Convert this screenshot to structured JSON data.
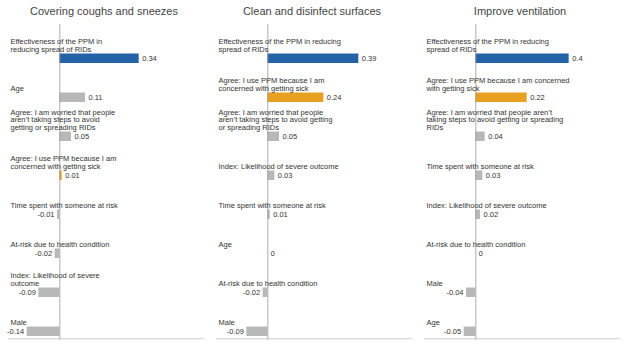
{
  "chart_data": [
    {
      "type": "bar",
      "orientation": "horizontal",
      "title": "Covering coughs and sneezes",
      "categories": [
        "Effectiveness of the PPM in\nreducing spread of RIDs",
        "Age",
        "Agree: I am worried that people\naren’t taking steps to avoid\ngetting or spreading RIDs",
        "Agree: I use PPM because I am\nconcerned with getting sick",
        "Time spent with someone at risk",
        "At-risk due to health condition",
        "Index: Likelihood of severe\noutcome",
        "Male"
      ],
      "values": [
        0.34,
        0.11,
        0.05,
        0.01,
        -0.01,
        -0.02,
        -0.09,
        -0.14
      ],
      "colors": [
        "#2563a8",
        "#b8b8b8",
        "#b8b8b8",
        "#e8a020",
        "#b8b8b8",
        "#b8b8b8",
        "#b8b8b8",
        "#b8b8b8"
      ],
      "xlim": [
        -0.22,
        0.62
      ],
      "tick_labels": false,
      "data_labels": true,
      "grid": false
    },
    {
      "type": "bar",
      "orientation": "horizontal",
      "title": "Clean and disinfect surfaces",
      "categories": [
        "Effectiveness of the PPM in reducing\nspread of RIDs",
        "Agree: I use PPM because I am\nconcerned with getting sick",
        "Agree: I am worried that people\naren’t taking steps to avoid getting\nor spreading RIDs",
        "Index: Likelihood of severe outcome",
        "Time spent with someone at risk",
        "Age",
        "At-risk due to health condition",
        "Male"
      ],
      "values": [
        0.39,
        0.24,
        0.05,
        0.03,
        0.01,
        0,
        -0.02,
        -0.09
      ],
      "colors": [
        "#2563a8",
        "#e8a020",
        "#b8b8b8",
        "#b8b8b8",
        "#b8b8b8",
        "#b8b8b8",
        "#b8b8b8",
        "#b8b8b8"
      ],
      "xlim": [
        -0.22,
        0.62
      ],
      "tick_labels": false,
      "data_labels": true,
      "grid": false
    },
    {
      "type": "bar",
      "orientation": "horizontal",
      "title": "Improve ventilation",
      "categories": [
        "Effectiveness of the PPM in reducing\nspread of RIDs",
        "Agree: I use PPM because I am concerned\nwith getting sick",
        "Agree: I am worried that people aren’t\ntaking steps to avoid getting or spreading\nRIDs",
        "Time spent with someone at risk",
        "Index: Likelihood of severe outcome",
        "At-risk due to health condition",
        "Male",
        "Age"
      ],
      "values": [
        0.4,
        0.22,
        0.04,
        0.03,
        0.02,
        0,
        -0.04,
        -0.05
      ],
      "colors": [
        "#2563a8",
        "#e8a020",
        "#b8b8b8",
        "#b8b8b8",
        "#b8b8b8",
        "#b8b8b8",
        "#b8b8b8",
        "#b8b8b8"
      ],
      "xlim": [
        -0.22,
        0.62
      ],
      "tick_labels": false,
      "data_labels": true,
      "grid": false
    }
  ]
}
